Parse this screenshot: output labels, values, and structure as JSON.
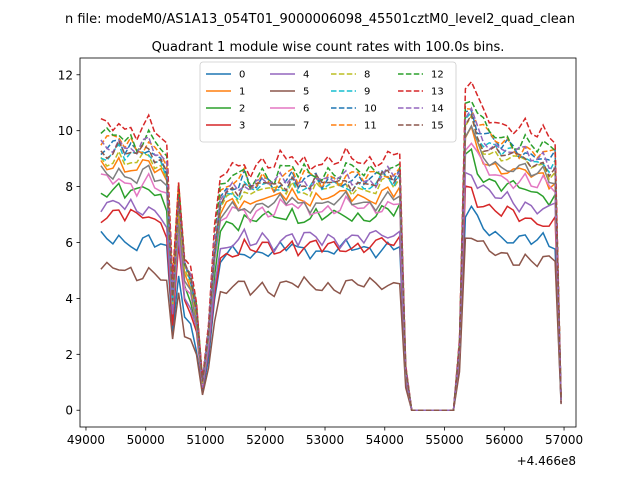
{
  "chart_data": {
    "type": "line",
    "suptitle": "n file: modeM0/AS1A13_054T01_9000006098_45501cztM0_level2_quad_clean",
    "title": "Quadrant 1 module wise count rates with 100.0s bins.",
    "xlabel": "",
    "ylabel": "",
    "x_offset_label": "+4.466e8",
    "xlim": [
      48900,
      57200
    ],
    "ylim": [
      -0.6,
      12.6
    ],
    "xticks": [
      49000,
      50000,
      51000,
      52000,
      53000,
      54000,
      55000,
      56000,
      57000
    ],
    "xtick_labels": [
      "49000",
      "50000",
      "51000",
      "52000",
      "53000",
      "54000",
      "55000",
      "56000",
      "57000"
    ],
    "yticks": [
      0,
      2,
      4,
      6,
      8,
      10,
      12
    ],
    "ytick_labels": [
      "0",
      "2",
      "4",
      "6",
      "8",
      "10",
      "12"
    ],
    "grid": false,
    "legend_position": "top-center",
    "legend_columns": 4,
    "x_start": 49250,
    "x_step": 100,
    "series": [
      {
        "name": "0",
        "color": "#1f77b4",
        "dash": false,
        "base": 6.1,
        "mid": 5.8,
        "late": 6.2
      },
      {
        "name": "1",
        "color": "#ff7f0e",
        "dash": false,
        "base": 8.8,
        "mid": 7.7,
        "late": 8.6
      },
      {
        "name": "2",
        "color": "#2ca02c",
        "dash": false,
        "base": 7.9,
        "mid": 7.0,
        "late": 8.0
      },
      {
        "name": "3",
        "color": "#d62728",
        "dash": false,
        "base": 7.0,
        "mid": 5.9,
        "late": 7.0
      },
      {
        "name": "4",
        "color": "#9467bd",
        "dash": false,
        "base": 7.3,
        "mid": 6.2,
        "late": 7.5
      },
      {
        "name": "5",
        "color": "#8c564b",
        "dash": false,
        "base": 5.0,
        "mid": 4.5,
        "late": 5.5
      },
      {
        "name": "6",
        "color": "#e377c2",
        "dash": false,
        "base": 8.2,
        "mid": 7.3,
        "late": 8.3
      },
      {
        "name": "7",
        "color": "#7f7f7f",
        "dash": false,
        "base": 8.5,
        "mid": 7.5,
        "late": 8.7
      },
      {
        "name": "8",
        "color": "#bcbd22",
        "dash": true,
        "base": 9.0,
        "mid": 8.0,
        "late": 9.0
      },
      {
        "name": "9",
        "color": "#17becf",
        "dash": true,
        "base": 9.2,
        "mid": 8.1,
        "late": 9.2
      },
      {
        "name": "10",
        "color": "#1f77b4",
        "dash": true,
        "base": 9.4,
        "mid": 8.3,
        "late": 9.4
      },
      {
        "name": "11",
        "color": "#ff7f0e",
        "dash": true,
        "base": 9.6,
        "mid": 8.4,
        "late": 9.5
      },
      {
        "name": "12",
        "color": "#2ca02c",
        "dash": true,
        "base": 9.8,
        "mid": 8.6,
        "late": 9.7
      },
      {
        "name": "13",
        "color": "#d62728",
        "dash": true,
        "base": 10.2,
        "mid": 9.0,
        "late": 10.2
      },
      {
        "name": "14",
        "color": "#9467bd",
        "dash": true,
        "base": 9.5,
        "mid": 8.3,
        "late": 9.3
      },
      {
        "name": "15",
        "color": "#8c564b",
        "dash": true,
        "base": 9.3,
        "mid": 8.2,
        "late": 9.1
      }
    ],
    "profile": [
      1.0,
      1.0,
      1.0,
      1.02,
      0.98,
      1.0,
      0.97,
      0.99,
      1.01,
      0.97,
      0.96,
      0.92,
      0.45,
      0.82,
      0.55,
      0.5,
      0.38,
      0.11,
      0.3,
      0.62,
      0.92,
      0.95,
      0.97,
      0.96,
      1.0,
      0.95,
      0.97,
      1.0,
      0.98,
      0.96,
      1.0,
      0.99,
      1.02,
      0.97,
      1.0,
      0.98,
      1.0,
      0.97,
      1.0,
      0.99,
      0.98,
      1.01,
      0.99,
      1.0,
      0.98,
      1.0,
      0.99,
      1.01,
      1.02,
      1.0,
      1.03,
      0.18,
      0.0,
      0.0,
      0.0,
      0.0,
      0.0,
      0.0,
      0.0,
      0.0,
      0.25,
      1.13,
      1.15,
      1.08,
      1.05,
      1.03,
      1.02,
      1.0,
      1.01,
      0.99,
      0.98,
      1.0,
      0.97,
      0.96,
      0.98,
      0.95,
      0.96,
      0.04
    ]
  }
}
